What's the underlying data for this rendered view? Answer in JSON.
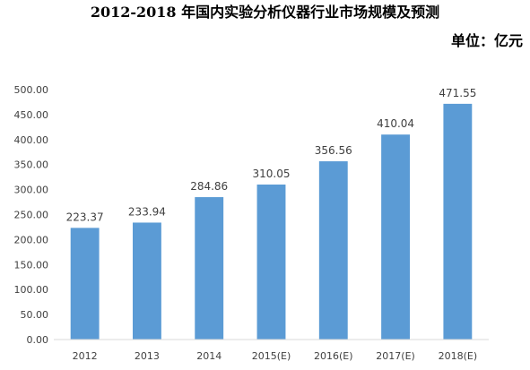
{
  "title": "2012-2018 年国内实验分析仪器行业市场规模及预测",
  "unit": "单位：亿元",
  "colors": {
    "bar": "#5b9bd5",
    "axis": "#d9d9d9",
    "text": "#404040"
  },
  "chart_data": {
    "type": "bar",
    "title": "2012-2018 年国内实验分析仪器行业市场规模及预测",
    "xlabel": "",
    "ylabel": "",
    "categories": [
      "2012",
      "2013",
      "2014",
      "2015(E)",
      "2016(E)",
      "2017(E)",
      "2018(E)"
    ],
    "values": [
      223.37,
      233.94,
      284.86,
      310.05,
      356.56,
      410.04,
      471.55
    ],
    "value_labels": [
      "223.37",
      "233.94",
      "284.86",
      "310.05",
      "356.56",
      "410.04",
      "471.55"
    ],
    "ylim": [
      0,
      500
    ],
    "yticks": [
      "0.00",
      "50.00",
      "100.00",
      "150.00",
      "200.00",
      "250.00",
      "300.00",
      "350.00",
      "400.00",
      "450.00",
      "500.00"
    ],
    "grid": false,
    "legend": "none"
  }
}
